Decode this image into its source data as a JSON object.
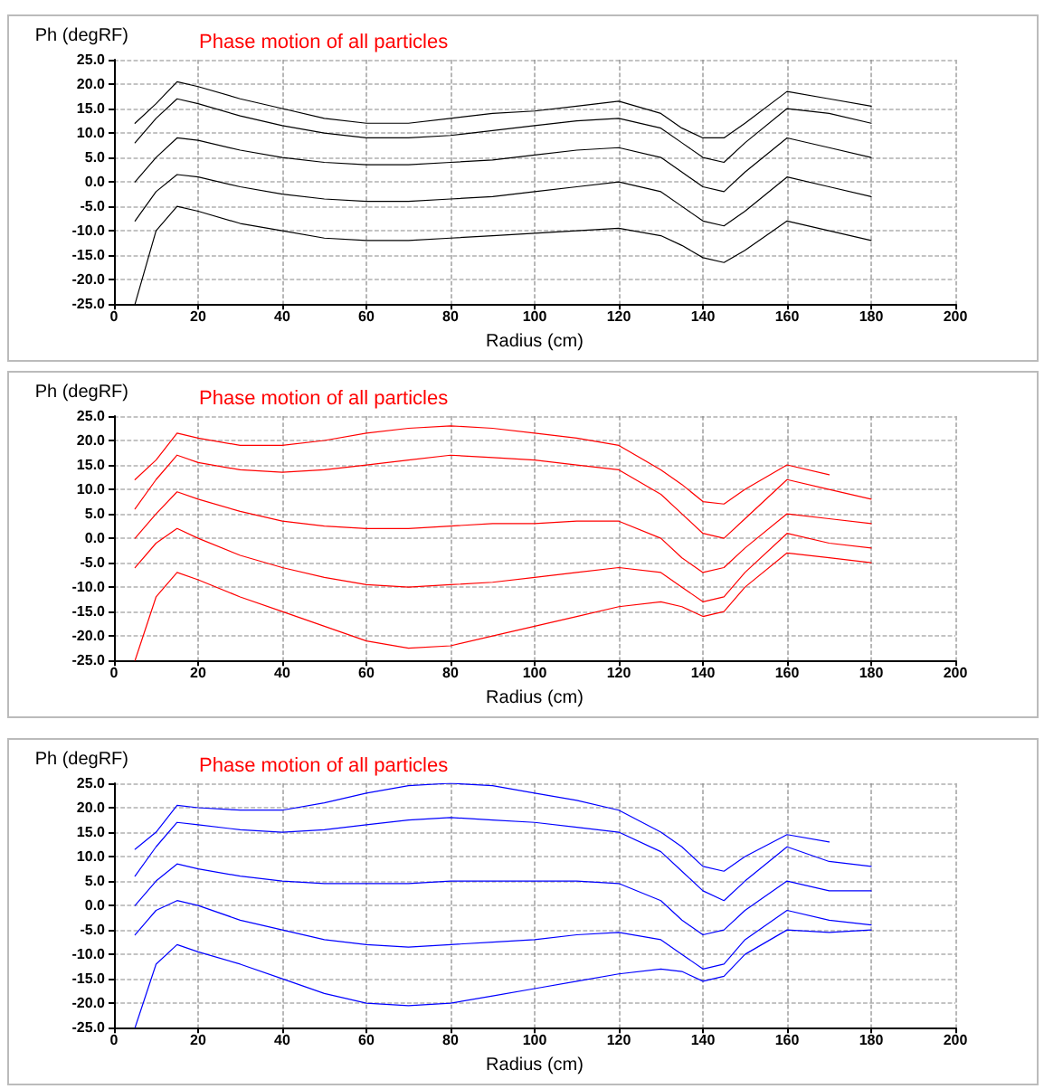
{
  "chart_data": [
    {
      "type": "line",
      "title": "Phase motion of all particles",
      "xlabel": "Radius (cm)",
      "ylabel": "Ph (degRF)",
      "xlim": [
        0,
        200
      ],
      "xticks": [
        0,
        20,
        40,
        60,
        80,
        100,
        120,
        140,
        160,
        180,
        200
      ],
      "ylim": [
        -25,
        25
      ],
      "yticks": [
        {
          "value": -25,
          "label": "-25.0"
        },
        {
          "value": -20,
          "label": "-20.0"
        },
        {
          "value": -15,
          "label": "-15.0"
        },
        {
          "value": -10,
          "label": "-10.0"
        },
        {
          "value": -5,
          "label": "-5.0"
        },
        {
          "value": 0,
          "label": "0.0"
        },
        {
          "value": 5,
          "label": "5.0"
        },
        {
          "value": 10,
          "label": "10.0"
        },
        {
          "value": 15,
          "label": "15.0"
        },
        {
          "value": 20,
          "label": "20.0"
        },
        {
          "value": 25,
          "label": "25.0"
        }
      ],
      "grid": true,
      "marker": "none",
      "line_style": "solid",
      "x": [
        5,
        10,
        15,
        20,
        30,
        40,
        50,
        60,
        70,
        80,
        90,
        100,
        110,
        120,
        130,
        135,
        140,
        145,
        150,
        160,
        170,
        180
      ],
      "series": [
        {
          "color": "#000000",
          "values": [
            12,
            16,
            20.5,
            19.5,
            17,
            15,
            13,
            12,
            12,
            13,
            14,
            14.5,
            15.5,
            16.5,
            14,
            11,
            9,
            9,
            12,
            18.5,
            17,
            15.5
          ]
        },
        {
          "color": "#000000",
          "values": [
            8,
            13,
            17,
            16,
            13.5,
            11.5,
            10,
            9,
            9,
            9.5,
            10.5,
            11.5,
            12.5,
            13,
            11,
            8,
            5,
            4,
            8,
            15,
            14,
            12
          ]
        },
        {
          "color": "#000000",
          "values": [
            0,
            5,
            9,
            8.5,
            6.5,
            5,
            4,
            3.5,
            3.5,
            4,
            4.5,
            5.5,
            6.5,
            7,
            5,
            2,
            -1,
            -2,
            2,
            9,
            7,
            5
          ]
        },
        {
          "color": "#000000",
          "values": [
            -8,
            -2,
            1.5,
            1,
            -1,
            -2.5,
            -3.5,
            -4,
            -4,
            -3.5,
            -3,
            -2,
            -1,
            0,
            -2,
            -5,
            -8,
            -9,
            -6,
            1,
            -1,
            -3
          ]
        },
        {
          "color": "#000000",
          "values": [
            -25,
            -10,
            -5,
            -6,
            -8.5,
            -10,
            -11.5,
            -12,
            -12,
            -11.5,
            -11,
            -10.5,
            -10,
            -9.5,
            -11,
            -13,
            -15.5,
            -16.5,
            -14,
            -8,
            -10,
            -12
          ]
        }
      ]
    },
    {
      "type": "line",
      "title": "Phase motion of all particles",
      "xlabel": "Radius (cm)",
      "ylabel": "Ph (degRF)",
      "xlim": [
        0,
        200
      ],
      "xticks": [
        0,
        20,
        40,
        60,
        80,
        100,
        120,
        140,
        160,
        180,
        200
      ],
      "ylim": [
        -25,
        25
      ],
      "yticks": [
        {
          "value": -25,
          "label": "-25.0"
        },
        {
          "value": -20,
          "label": "-20.0"
        },
        {
          "value": -15,
          "label": "-15.0"
        },
        {
          "value": -10,
          "label": "-10.0"
        },
        {
          "value": -5,
          "label": "-5.0"
        },
        {
          "value": 0,
          "label": "0.0"
        },
        {
          "value": 5,
          "label": "5.0"
        },
        {
          "value": 10,
          "label": "10.0"
        },
        {
          "value": 15,
          "label": "15.0"
        },
        {
          "value": 20,
          "label": "20.0"
        },
        {
          "value": 25,
          "label": "25.0"
        }
      ],
      "grid": true,
      "marker": "none",
      "line_style": "solid",
      "x": [
        5,
        10,
        15,
        20,
        30,
        40,
        50,
        60,
        70,
        80,
        90,
        100,
        110,
        120,
        130,
        135,
        140,
        145,
        150,
        160,
        170,
        180
      ],
      "series": [
        {
          "color": "#ff0000",
          "values": [
            12,
            16,
            21.5,
            20.5,
            19,
            19,
            20,
            21.5,
            22.5,
            23,
            22.5,
            21.5,
            20.5,
            19,
            14,
            11,
            7.5,
            7,
            10,
            15,
            13,
            null
          ]
        },
        {
          "color": "#ff0000",
          "values": [
            6,
            12,
            17,
            15.5,
            14,
            13.5,
            14,
            15,
            16,
            17,
            16.5,
            16,
            15,
            14,
            9,
            5,
            1,
            0,
            4,
            12,
            10,
            8
          ]
        },
        {
          "color": "#ff0000",
          "values": [
            0,
            5,
            9.5,
            8,
            5.5,
            3.5,
            2.5,
            2,
            2,
            2.5,
            3,
            3,
            3.5,
            3.5,
            0,
            -4,
            -7,
            -6,
            -2,
            5,
            4,
            3
          ]
        },
        {
          "color": "#ff0000",
          "values": [
            -6,
            -1,
            2,
            0,
            -3.5,
            -6,
            -8,
            -9.5,
            -10,
            -9.5,
            -9,
            -8,
            -7,
            -6,
            -7,
            -10,
            -13,
            -12,
            -7,
            1,
            -1,
            -2
          ]
        },
        {
          "color": "#ff0000",
          "values": [
            -25,
            -12,
            -7,
            -8.5,
            -12,
            -15,
            -18,
            -21,
            -22.5,
            -22,
            -20,
            -18,
            -16,
            -14,
            -13,
            -14,
            -16,
            -15,
            -10,
            -3,
            -4,
            -5
          ]
        }
      ]
    },
    {
      "type": "line",
      "title": "Phase motion of all particles",
      "xlabel": "Radius (cm)",
      "ylabel": "Ph (degRF)",
      "xlim": [
        0,
        200
      ],
      "xticks": [
        0,
        20,
        40,
        60,
        80,
        100,
        120,
        140,
        160,
        180,
        200
      ],
      "ylim": [
        -25,
        25
      ],
      "yticks": [
        {
          "value": -25,
          "label": "-25.0"
        },
        {
          "value": -20,
          "label": "-20.0"
        },
        {
          "value": -15,
          "label": "-15.0"
        },
        {
          "value": -10,
          "label": "-10.0"
        },
        {
          "value": -5,
          "label": "-5.0"
        },
        {
          "value": 0,
          "label": "0.0"
        },
        {
          "value": 5,
          "label": "5.0"
        },
        {
          "value": 10,
          "label": "10.0"
        },
        {
          "value": 15,
          "label": "15.0"
        },
        {
          "value": 20,
          "label": "20.0"
        },
        {
          "value": 25,
          "label": "25.0"
        }
      ],
      "grid": true,
      "marker": "none",
      "line_style": "solid",
      "x": [
        5,
        10,
        15,
        20,
        30,
        40,
        50,
        60,
        70,
        80,
        90,
        100,
        110,
        120,
        130,
        135,
        140,
        145,
        150,
        160,
        170,
        180
      ],
      "series": [
        {
          "color": "#0000ff",
          "values": [
            11.5,
            15,
            20.5,
            20,
            19.5,
            19.5,
            21,
            23,
            24.5,
            25,
            24.5,
            23,
            21.5,
            19.5,
            15,
            12,
            8,
            7,
            10,
            14.5,
            13,
            null
          ]
        },
        {
          "color": "#0000ff",
          "values": [
            6,
            12,
            17,
            16.5,
            15.5,
            15,
            15.5,
            16.5,
            17.5,
            18,
            17.5,
            17,
            16,
            15,
            11,
            7,
            3,
            1,
            5,
            12,
            9,
            8
          ]
        },
        {
          "color": "#0000ff",
          "values": [
            0,
            5,
            8.5,
            7.5,
            6,
            5,
            4.5,
            4.5,
            4.5,
            5,
            5,
            5,
            5,
            4.5,
            1,
            -3,
            -6,
            -5,
            -1,
            5,
            3,
            3
          ]
        },
        {
          "color": "#0000ff",
          "values": [
            -6,
            -1,
            1,
            0,
            -3,
            -5,
            -7,
            -8,
            -8.5,
            -8,
            -7.5,
            -7,
            -6,
            -5.5,
            -7,
            -10,
            -13,
            -12,
            -7,
            -1,
            -3,
            -4
          ]
        },
        {
          "color": "#0000ff",
          "values": [
            -25,
            -12,
            -8,
            -9.5,
            -12,
            -15,
            -18,
            -20,
            -20.5,
            -20,
            -18.5,
            -17,
            -15.5,
            -14,
            -13,
            -13.5,
            -15.5,
            -14.5,
            -10,
            -5,
            -5.5,
            -5
          ]
        }
      ]
    }
  ]
}
